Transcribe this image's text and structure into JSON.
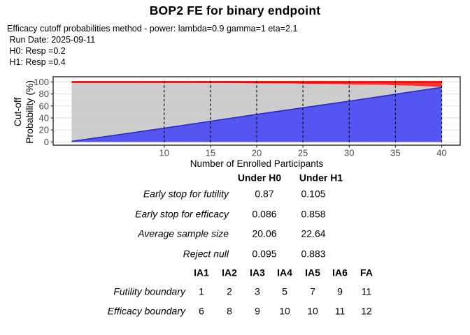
{
  "title": "BOP2 FE for binary endpoint",
  "subtitle_lines": [
    "Efficacy cutoff probabilities method - power: lambda=0.9 gamma=1 eta=2.1",
    " Run Date: 2025-09-11",
    " H0: Resp =0.2",
    " H1: Resp =0.4"
  ],
  "chart_data": {
    "type": "area",
    "title": "",
    "xlabel": "Number of Enrolled Participants",
    "ylabel": "Cut-off Probability (%)",
    "ylabel_lines": [
      "Cut-off",
      "Probability (%)"
    ],
    "xlim": [
      -2,
      42
    ],
    "ylim": [
      -5.3,
      108.6
    ],
    "x_ticks": [
      10,
      15,
      20,
      25,
      30,
      35,
      40
    ],
    "y_ticks": [
      0,
      20,
      40,
      60,
      80,
      100
    ],
    "x_minor": [
      7.5,
      12.5,
      17.5,
      22.5,
      27.5,
      32.5,
      37.5
    ],
    "y_minor": [
      10,
      30,
      50,
      70,
      90
    ],
    "grid": true,
    "dashed_lines_x": [
      10,
      15,
      20,
      25,
      30,
      35,
      40
    ],
    "top_value": 100,
    "series": [
      {
        "name": "futility-cutoff",
        "role": "lower-blue-area",
        "fill": "#4343EF",
        "line": "#2828CC",
        "x": [
          0,
          5,
          10,
          15,
          20,
          25,
          30,
          35,
          40
        ],
        "y": [
          1,
          12,
          23,
          34.5,
          46,
          57,
          68,
          79.5,
          91
        ]
      },
      {
        "name": "efficacy-cutoff",
        "role": "upper-red-band-bottom-edge",
        "fill": "#FA2A2A",
        "line": "#F70000",
        "x": [
          0,
          12,
          13,
          17,
          20,
          24,
          25,
          29,
          30,
          34,
          35,
          37,
          38,
          40
        ],
        "y": [
          100,
          100,
          99.3,
          99.1,
          98.4,
          98.2,
          97.6,
          97.3,
          96.5,
          95.9,
          95.1,
          94.6,
          93.8,
          92.6
        ]
      }
    ],
    "between_fill": "#C9C9C9",
    "colors": {
      "grid_major": "#E4E4E4",
      "grid_minor": "#F3F3F3",
      "panel_border": "#2B2B2B",
      "axis_text": "#4A4A4A",
      "dashed": "#111111"
    }
  },
  "tables": {
    "hypothesis": {
      "col_headers": [
        "Under H0",
        "Under H1"
      ],
      "rows": [
        {
          "label": "Early stop for futility",
          "h0": "0.87",
          "h1": "0.105"
        },
        {
          "label": "Early stop for efficacy",
          "h0": "0.086",
          "h1": "0.858"
        },
        {
          "label": "Average sample size",
          "h0": "20.06",
          "h1": "22.64"
        },
        {
          "label": "Reject null",
          "h0": "0.095",
          "h1": "0.883"
        }
      ]
    },
    "boundaries": {
      "col_headers": [
        "IA1",
        "IA2",
        "IA3",
        "IA4",
        "IA5",
        "IA6",
        "FA"
      ],
      "rows": [
        {
          "label": "Futility boundary",
          "values": [
            "1",
            "2",
            "3",
            "5",
            "7",
            "9",
            "11"
          ]
        },
        {
          "label": "Efficacy boundary",
          "values": [
            "6",
            "8",
            "9",
            "10",
            "10",
            "11",
            "12"
          ]
        }
      ]
    }
  }
}
